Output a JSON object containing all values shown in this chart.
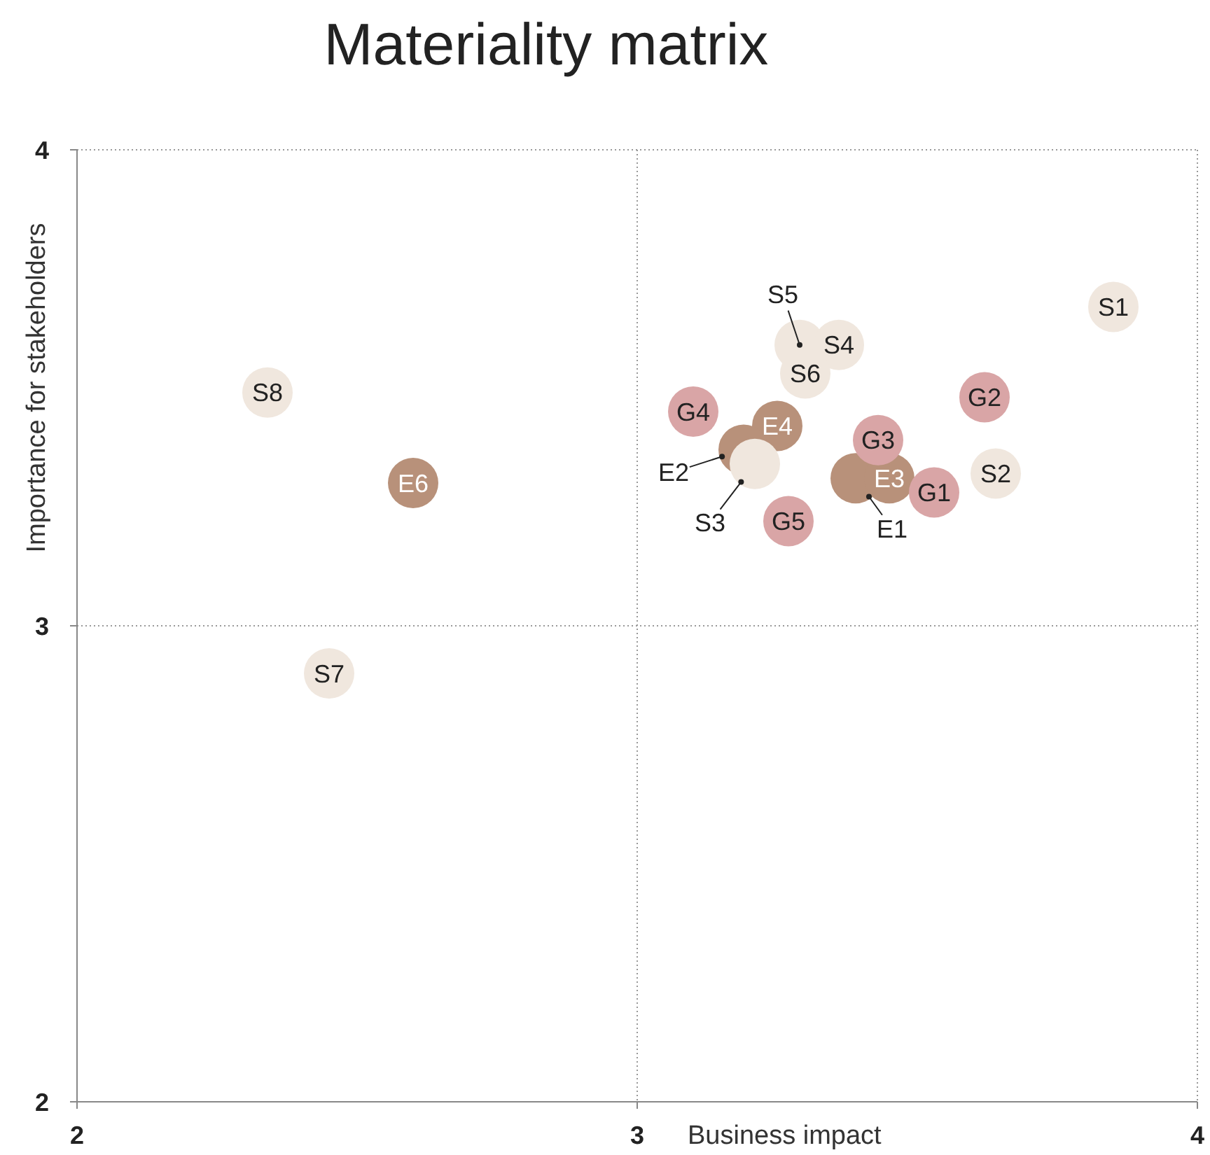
{
  "chart_data": {
    "type": "scatter",
    "title": "Materiality matrix",
    "xlabel": "Business impact",
    "ylabel": "Importance for stakeholders",
    "x": [
      3.85,
      2.34,
      2.6,
      2.45,
      3.1,
      3.29,
      3.36,
      3.3,
      3.25,
      3.19,
      3.21,
      3.27,
      3.39,
      3.45,
      3.43,
      3.53,
      3.62,
      3.64
    ],
    "values": [
      3.67,
      3.49,
      3.3,
      2.9,
      3.45,
      3.59,
      3.59,
      3.53,
      3.42,
      3.37,
      3.34,
      3.22,
      3.31,
      3.31,
      3.39,
      3.28,
      3.48,
      3.32
    ],
    "colors": [
      "#f0e7de",
      "#f0e7de",
      "#b8917a",
      "#f0e7de",
      "#d9a5a6",
      "#f0e7de",
      "#f0e7de",
      "#f0e7de",
      "#b8917a",
      "#b8917a",
      "#f0e7de",
      "#d9a5a6",
      "#b8917a",
      "#b8917a",
      "#d9a5a6",
      "#d9a5a6",
      "#d9a5a6",
      "#f0e7de"
    ],
    "annotations": [
      {
        "text": "S1",
        "x": 3.85,
        "y": 3.67
      },
      {
        "text": "S8",
        "x": 2.34,
        "y": 3.49
      },
      {
        "text": "E6",
        "x": 2.6,
        "y": 3.3
      },
      {
        "text": "S7",
        "x": 2.45,
        "y": 2.9
      },
      {
        "text": "G4",
        "x": 3.1,
        "y": 3.45
      },
      {
        "text": "S5",
        "x": 3.29,
        "y": 3.59
      },
      {
        "text": "S4",
        "x": 3.36,
        "y": 3.59
      },
      {
        "text": "S6",
        "x": 3.3,
        "y": 3.53
      },
      {
        "text": "E4",
        "x": 3.25,
        "y": 3.42
      },
      {
        "text": "E2",
        "x": 3.19,
        "y": 3.37
      },
      {
        "text": "S3",
        "x": 3.21,
        "y": 3.34
      },
      {
        "text": "G5",
        "x": 3.27,
        "y": 3.22
      },
      {
        "text": "E1",
        "x": 3.39,
        "y": 3.31
      },
      {
        "text": "E3",
        "x": 3.45,
        "y": 3.31
      },
      {
        "text": "G3",
        "x": 3.43,
        "y": 3.39
      },
      {
        "text": "G1",
        "x": 3.53,
        "y": 3.28
      },
      {
        "text": "G2",
        "x": 3.62,
        "y": 3.48
      },
      {
        "text": "S2",
        "x": 3.64,
        "y": 3.32
      }
    ],
    "xlim": [
      2,
      4
    ],
    "ylim": [
      2,
      4
    ],
    "xticks": [
      2,
      3,
      4
    ],
    "yticks": [
      2,
      3,
      4
    ],
    "grid": true,
    "marker": "circle"
  }
}
